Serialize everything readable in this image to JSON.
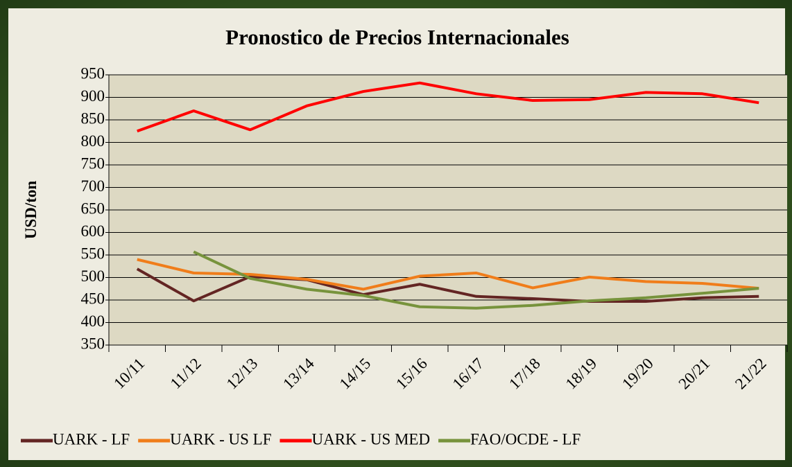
{
  "chart_data": {
    "type": "line",
    "title": "Pronostico de Precios Internacionales",
    "y_label": "USD/ton",
    "categories": [
      "10/11",
      "11/12",
      "12/13",
      "13/14",
      "14/15",
      "15/16",
      "16/17",
      "17/18",
      "18/19",
      "19/20",
      "20/21",
      "21/22"
    ],
    "series": [
      {
        "name": "UARK - LF",
        "color": "#632523",
        "values": [
          519,
          448,
          502,
          495,
          462,
          485,
          458,
          453,
          447,
          447,
          455,
          458
        ]
      },
      {
        "name": "UARK - US LF",
        "color": "#f07d1a",
        "values": [
          540,
          510,
          507,
          496,
          474,
          503,
          510,
          477,
          501,
          491,
          487,
          476
        ]
      },
      {
        "name": "UARK - US MED",
        "color": "#ff0000",
        "values": [
          825,
          870,
          828,
          881,
          913,
          932,
          908,
          893,
          895,
          911,
          908,
          888
        ]
      },
      {
        "name": "FAO/OCDE - LF",
        "color": "#77933c",
        "values": [
          null,
          557,
          498,
          474,
          460,
          435,
          432,
          438,
          448,
          455,
          465,
          476
        ]
      }
    ],
    "ylim": [
      350,
      950
    ],
    "yticks": [
      350,
      400,
      450,
      500,
      550,
      600,
      650,
      700,
      750,
      800,
      850,
      900,
      950
    ],
    "grid": true,
    "legend": "bottom"
  }
}
